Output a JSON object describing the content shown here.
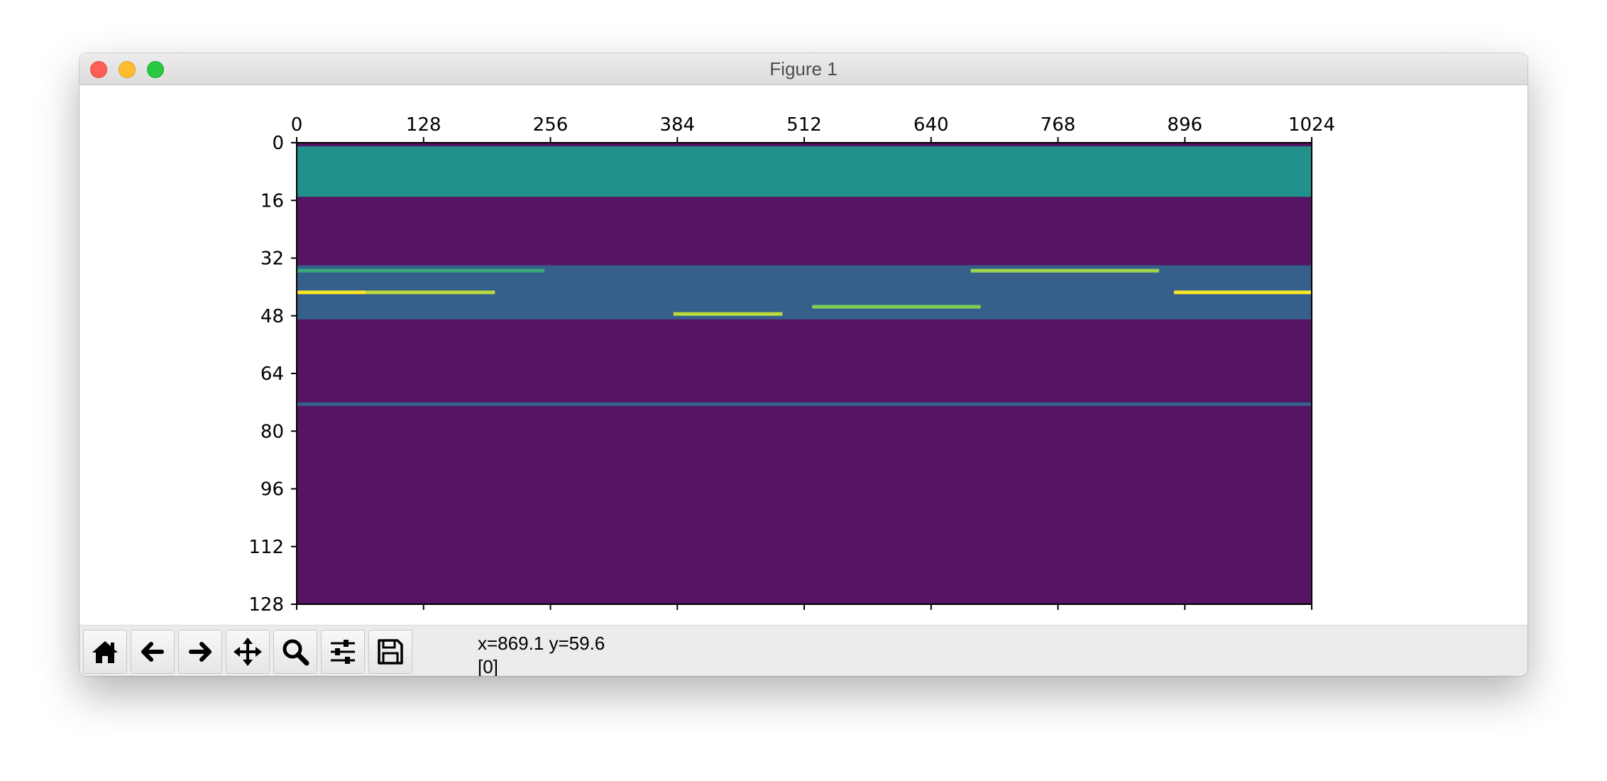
{
  "window": {
    "title": "Figure 1"
  },
  "chart_data": {
    "type": "heatmap",
    "colormap": "viridis",
    "rows": 128,
    "cols": 1024,
    "x_axis_position": "top",
    "xticks": [
      0,
      128,
      256,
      384,
      512,
      640,
      768,
      896,
      1024
    ],
    "yticks": [
      0,
      16,
      32,
      48,
      64,
      80,
      96,
      112,
      128
    ],
    "xlim": [
      0,
      1024
    ],
    "ylim": [
      128,
      0
    ],
    "background_value": 0.0,
    "bands": [
      {
        "rows": [
          1,
          14
        ],
        "value": 0.5,
        "description": "uniform teal block"
      },
      {
        "rows": [
          34,
          48
        ],
        "value": 0.3,
        "description": "mixed active band"
      },
      {
        "rows": [
          72,
          72
        ],
        "value": 0.3,
        "description": "thin line"
      }
    ],
    "highlights": [
      {
        "row": 35,
        "x": [
          0,
          250
        ],
        "value": 0.6
      },
      {
        "row": 35,
        "x": [
          680,
          870
        ],
        "value": 0.85
      },
      {
        "row": 41,
        "x": [
          0,
          70
        ],
        "value": 1.0
      },
      {
        "row": 41,
        "x": [
          70,
          200
        ],
        "value": 0.9
      },
      {
        "row": 41,
        "x": [
          885,
          1024
        ],
        "value": 1.0
      },
      {
        "row": 45,
        "x": [
          520,
          690
        ],
        "value": 0.8
      },
      {
        "row": 47,
        "x": [
          380,
          490
        ],
        "value": 0.9
      }
    ]
  },
  "toolbar": {
    "buttons": [
      {
        "name": "home-button",
        "icon": "home-icon"
      },
      {
        "name": "back-button",
        "icon": "arrow-left-icon"
      },
      {
        "name": "forward-button",
        "icon": "arrow-right-icon"
      },
      {
        "name": "pan-button",
        "icon": "move-icon"
      },
      {
        "name": "zoom-button",
        "icon": "magnifier-icon"
      },
      {
        "name": "configure-subplots-button",
        "icon": "sliders-icon"
      },
      {
        "name": "save-button",
        "icon": "floppy-icon"
      }
    ]
  },
  "status": {
    "coords": "x=869.1 y=59.6",
    "value": "[0]"
  },
  "colors": {
    "background_cell": "#561464",
    "teal": "#21a0a0",
    "yellow": "#e8ea35"
  }
}
